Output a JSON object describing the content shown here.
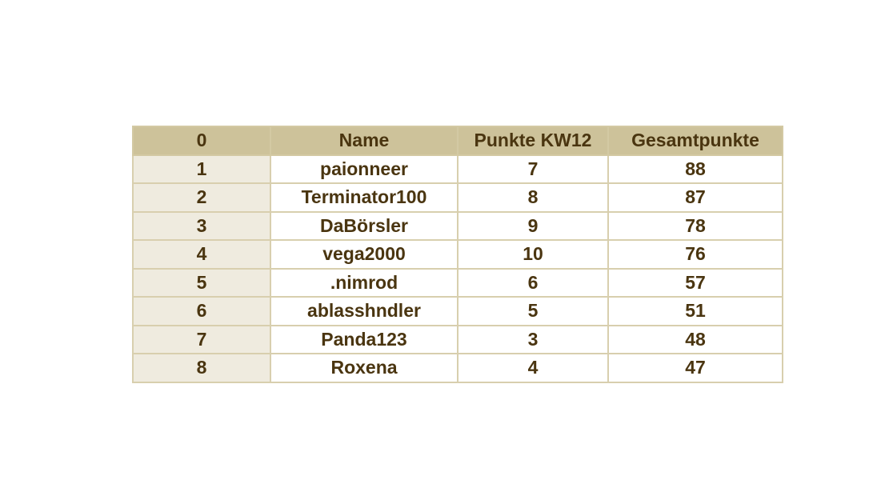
{
  "table": {
    "headers": [
      "0",
      "Name",
      "Punkte KW12",
      "Gesamtpunkte"
    ],
    "rows": [
      [
        "1",
        "paionneer",
        "7",
        "88"
      ],
      [
        "2",
        "Terminator100",
        "8",
        "87"
      ],
      [
        "3",
        "DaBörsler",
        "9",
        "78"
      ],
      [
        "4",
        "vega2000",
        "10",
        "76"
      ],
      [
        "5",
        ".nimrod",
        "6",
        "57"
      ],
      [
        "6",
        "ablasshndler",
        "5",
        "51"
      ],
      [
        "7",
        "Panda123",
        "3",
        "48"
      ],
      [
        "8",
        "Roxena",
        "4",
        "47"
      ]
    ]
  },
  "colors": {
    "header_bg": "#cdc29a",
    "index_bg": "#efebdf",
    "text": "#4a3510",
    "border": "#d8cfae"
  }
}
